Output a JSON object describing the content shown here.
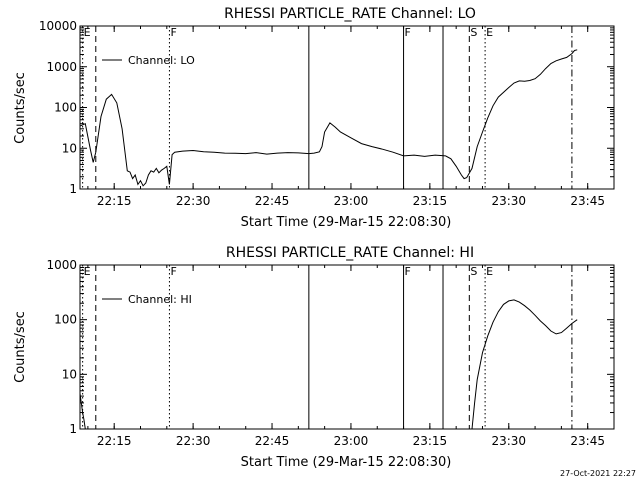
{
  "footer": {
    "timestamp": "27-Oct-2021 22:27"
  },
  "chart_data": [
    {
      "type": "line",
      "title": "RHESSI PARTICLE_RATE Channel: LO",
      "xlabel": "Start Time (29-Mar-15 22:08:30)",
      "ylabel": "Counts/sec",
      "y_scale": "log",
      "ylim": [
        1,
        10000
      ],
      "xlim": [
        "22:08:30",
        "23:50:00"
      ],
      "x_ticks": [
        "22:15",
        "22:30",
        "22:45",
        "23:00",
        "23:15",
        "23:30",
        "23:45"
      ],
      "y_ticks": [
        "1",
        "10",
        "100",
        "1000",
        "10000"
      ],
      "legend": {
        "position": "top-left",
        "entries": [
          "Channel: LO"
        ]
      },
      "markers": [
        {
          "time": "22:09:00",
          "label": "E",
          "style": "dotted"
        },
        {
          "time": "22:11:30",
          "label": "",
          "style": "dashed"
        },
        {
          "time": "22:25:30",
          "label": "F",
          "style": "dotted"
        },
        {
          "time": "22:52:00",
          "label": "",
          "style": "solid"
        },
        {
          "time": "23:10:00",
          "label": "F",
          "style": "solid"
        },
        {
          "time": "23:17:30",
          "label": "",
          "style": "solid"
        },
        {
          "time": "23:22:30",
          "label": "S",
          "style": "dashed"
        },
        {
          "time": "23:25:30",
          "label": "E",
          "style": "dotted"
        },
        {
          "time": "23:42:00",
          "label": "",
          "style": "dashdot"
        }
      ],
      "series": [
        {
          "name": "Channel: LO",
          "x": [
            "22:08:30",
            "22:09:30",
            "22:10:30",
            "22:11:00",
            "22:11:30",
            "22:12:30",
            "22:13:30",
            "22:14:30",
            "22:15:30",
            "22:16:30",
            "22:17:30",
            "22:18:00",
            "22:18:30",
            "22:19:00",
            "22:19:30",
            "22:20:00",
            "22:20:30",
            "22:21:00",
            "22:21:30",
            "22:22:00",
            "22:22:30",
            "22:23:00",
            "22:23:30",
            "22:24:00",
            "22:24:30",
            "22:25:00",
            "22:25:30",
            "22:26:00",
            "22:26:30",
            "22:28:00",
            "22:30:00",
            "22:32:00",
            "22:34:00",
            "22:36:00",
            "22:38:00",
            "22:40:00",
            "22:42:00",
            "22:44:00",
            "22:46:00",
            "22:48:00",
            "22:50:00",
            "22:52:00",
            "22:53:00",
            "22:54:00",
            "22:54:30",
            "22:55:00",
            "22:56:00",
            "22:57:00",
            "22:58:00",
            "23:00:00",
            "23:02:00",
            "23:04:00",
            "23:06:00",
            "23:08:00",
            "23:10:00",
            "23:12:00",
            "23:14:00",
            "23:16:00",
            "23:18:00",
            "23:19:00",
            "23:20:00",
            "23:21:00",
            "23:21:30",
            "23:22:00",
            "23:23:00",
            "23:24:00",
            "23:25:00",
            "23:26:00",
            "23:27:00",
            "23:28:00",
            "23:30:00",
            "23:31:00",
            "23:32:00",
            "23:33:00",
            "23:34:00",
            "23:35:00",
            "23:36:00",
            "23:37:00",
            "23:38:00",
            "23:39:00",
            "23:40:00",
            "23:41:00",
            "23:42:00",
            "23:42:30",
            "23:43:00"
          ],
          "y": [
            35,
            40,
            9,
            4.5,
            8,
            60,
            160,
            210,
            130,
            30,
            2.8,
            2.6,
            1.8,
            2.2,
            1.3,
            1.6,
            1.2,
            1.4,
            2.2,
            2.8,
            2.6,
            3.2,
            2.5,
            2.9,
            3.2,
            3.6,
            1.3,
            7,
            8,
            8.5,
            8.8,
            8.2,
            8,
            7.6,
            7.5,
            7.4,
            7.8,
            7.2,
            7.6,
            7.8,
            7.7,
            7.4,
            7.6,
            8.2,
            11,
            25,
            42,
            33,
            25,
            18,
            13,
            11,
            9.5,
            8,
            6.5,
            6.8,
            6.3,
            6.8,
            6.5,
            5.5,
            3.6,
            2.2,
            1.8,
            1.9,
            3.2,
            11,
            25,
            55,
            110,
            180,
            310,
            400,
            450,
            440,
            460,
            510,
            650,
            900,
            1200,
            1400,
            1550,
            1700,
            2100,
            2500,
            2600
          ]
        }
      ]
    },
    {
      "type": "line",
      "title": "RHESSI PARTICLE_RATE Channel: HI",
      "xlabel": "Start Time (29-Mar-15 22:08:30)",
      "ylabel": "Counts/sec",
      "y_scale": "log",
      "ylim": [
        1,
        1000
      ],
      "xlim": [
        "22:08:30",
        "23:50:00"
      ],
      "x_ticks": [
        "22:15",
        "22:30",
        "22:45",
        "23:00",
        "23:15",
        "23:30",
        "23:45"
      ],
      "y_ticks": [
        "1",
        "10",
        "100",
        "1000"
      ],
      "legend": {
        "position": "top-left",
        "entries": [
          "Channel: HI"
        ]
      },
      "markers": [
        {
          "time": "22:09:00",
          "label": "E",
          "style": "dotted"
        },
        {
          "time": "22:11:30",
          "label": "",
          "style": "dashed"
        },
        {
          "time": "22:25:30",
          "label": "F",
          "style": "dotted"
        },
        {
          "time": "22:52:00",
          "label": "",
          "style": "solid"
        },
        {
          "time": "23:10:00",
          "label": "F",
          "style": "solid"
        },
        {
          "time": "23:17:30",
          "label": "",
          "style": "solid"
        },
        {
          "time": "23:22:30",
          "label": "S",
          "style": "dashed"
        },
        {
          "time": "23:25:30",
          "label": "E",
          "style": "dotted"
        },
        {
          "time": "23:42:00",
          "label": "",
          "style": "dashdot"
        }
      ],
      "series": [
        {
          "name": "Channel: HI",
          "x": [
            "22:08:30",
            "22:08:45",
            "22:09:00",
            "22:09:15",
            "22:09:30"
          ],
          "y": [
            4.5,
            3,
            2,
            1.5,
            1
          ],
          "segment": "early"
        },
        {
          "name": "Channel: HI",
          "x": [
            "23:23:00",
            "23:23:30",
            "23:24:00",
            "23:25:00",
            "23:26:00",
            "23:27:00",
            "23:28:00",
            "23:29:00",
            "23:30:00",
            "23:31:00",
            "23:32:00",
            "23:33:00",
            "23:34:00",
            "23:35:00",
            "23:36:00",
            "23:37:00",
            "23:38:00",
            "23:39:00",
            "23:40:00",
            "23:41:00",
            "23:42:00",
            "23:43:00"
          ],
          "y": [
            1,
            3,
            8,
            25,
            50,
            90,
            140,
            190,
            220,
            230,
            210,
            180,
            150,
            120,
            95,
            78,
            62,
            55,
            58,
            70,
            85,
            100
          ],
          "segment": "late"
        }
      ]
    }
  ]
}
